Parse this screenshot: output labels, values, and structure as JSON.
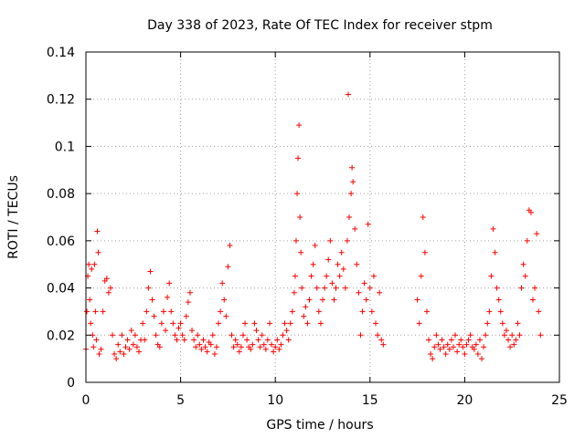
{
  "chart_data": {
    "type": "scatter",
    "title": "Day 338 of 2023, Rate Of TEC Index for receiver stpm",
    "xlabel": "GPS time / hours",
    "ylabel": "ROTI / TECUs",
    "xlim": [
      0,
      25
    ],
    "ylim": [
      0,
      0.14
    ],
    "x_ticks": [
      "0",
      "5",
      "10",
      "15",
      "20",
      "25"
    ],
    "y_ticks": [
      "0",
      "0.02",
      "0.04",
      "0.06",
      "0.08",
      "0.1",
      "0.12",
      "0.14"
    ],
    "x_tick_values": [
      0,
      5,
      10,
      15,
      20,
      25
    ],
    "y_tick_values": [
      0,
      0.02,
      0.04,
      0.06,
      0.08,
      0.1,
      0.12,
      0.14
    ],
    "grid": true,
    "marker": "+",
    "color": "#ff0000",
    "series": [
      {
        "points": [
          [
            0.0,
            0.014
          ],
          [
            0.05,
            0.03
          ],
          [
            0.1,
            0.045
          ],
          [
            0.15,
            0.05
          ],
          [
            0.2,
            0.035
          ],
          [
            0.25,
            0.025
          ],
          [
            0.3,
            0.048
          ],
          [
            0.35,
            0.02
          ],
          [
            0.4,
            0.015
          ],
          [
            0.45,
            0.05
          ],
          [
            0.5,
            0.03
          ],
          [
            0.55,
            0.018
          ],
          [
            0.6,
            0.064
          ],
          [
            0.65,
            0.055
          ],
          [
            0.7,
            0.012
          ],
          [
            0.8,
            0.014
          ],
          [
            0.9,
            0.03
          ],
          [
            1.0,
            0.043
          ],
          [
            1.1,
            0.044
          ],
          [
            1.2,
            0.038
          ],
          [
            1.3,
            0.04
          ],
          [
            1.4,
            0.02
          ],
          [
            1.5,
            0.012
          ],
          [
            1.6,
            0.01
          ],
          [
            1.7,
            0.016
          ],
          [
            1.8,
            0.013
          ],
          [
            1.9,
            0.02
          ],
          [
            2.0,
            0.012
          ],
          [
            2.1,
            0.015
          ],
          [
            2.2,
            0.018
          ],
          [
            2.3,
            0.014
          ],
          [
            2.4,
            0.022
          ],
          [
            2.5,
            0.016
          ],
          [
            2.6,
            0.02
          ],
          [
            2.7,
            0.015
          ],
          [
            2.8,
            0.013
          ],
          [
            2.9,
            0.018
          ],
          [
            3.0,
            0.025
          ],
          [
            3.1,
            0.018
          ],
          [
            3.2,
            0.03
          ],
          [
            3.3,
            0.04
          ],
          [
            3.4,
            0.047
          ],
          [
            3.5,
            0.035
          ],
          [
            3.6,
            0.028
          ],
          [
            3.7,
            0.02
          ],
          [
            3.8,
            0.016
          ],
          [
            3.9,
            0.015
          ],
          [
            4.0,
            0.025
          ],
          [
            4.1,
            0.03
          ],
          [
            4.2,
            0.022
          ],
          [
            4.3,
            0.036
          ],
          [
            4.4,
            0.042
          ],
          [
            4.5,
            0.03
          ],
          [
            4.6,
            0.025
          ],
          [
            4.7,
            0.02
          ],
          [
            4.8,
            0.018
          ],
          [
            4.9,
            0.023
          ],
          [
            5.0,
            0.025
          ],
          [
            5.1,
            0.02
          ],
          [
            5.2,
            0.018
          ],
          [
            5.3,
            0.028
          ],
          [
            5.4,
            0.034
          ],
          [
            5.5,
            0.038
          ],
          [
            5.6,
            0.022
          ],
          [
            5.7,
            0.018
          ],
          [
            5.8,
            0.015
          ],
          [
            5.9,
            0.02
          ],
          [
            6.0,
            0.016
          ],
          [
            6.1,
            0.014
          ],
          [
            6.2,
            0.018
          ],
          [
            6.3,
            0.015
          ],
          [
            6.4,
            0.013
          ],
          [
            6.5,
            0.017
          ],
          [
            6.6,
            0.016
          ],
          [
            6.7,
            0.02
          ],
          [
            6.8,
            0.012
          ],
          [
            6.9,
            0.015
          ],
          [
            7.0,
            0.025
          ],
          [
            7.1,
            0.03
          ],
          [
            7.2,
            0.042
          ],
          [
            7.3,
            0.035
          ],
          [
            7.4,
            0.028
          ],
          [
            7.5,
            0.049
          ],
          [
            7.6,
            0.058
          ],
          [
            7.7,
            0.02
          ],
          [
            7.8,
            0.015
          ],
          [
            7.9,
            0.018
          ],
          [
            8.0,
            0.016
          ],
          [
            8.1,
            0.013
          ],
          [
            8.2,
            0.015
          ],
          [
            8.3,
            0.02
          ],
          [
            8.4,
            0.025
          ],
          [
            8.5,
            0.018
          ],
          [
            8.6,
            0.015
          ],
          [
            8.7,
            0.014
          ],
          [
            8.8,
            0.016
          ],
          [
            8.9,
            0.025
          ],
          [
            9.0,
            0.022
          ],
          [
            9.1,
            0.018
          ],
          [
            9.2,
            0.015
          ],
          [
            9.3,
            0.02
          ],
          [
            9.4,
            0.016
          ],
          [
            9.5,
            0.014
          ],
          [
            9.6,
            0.018
          ],
          [
            9.7,
            0.025
          ],
          [
            9.8,
            0.016
          ],
          [
            9.9,
            0.013
          ],
          [
            10.0,
            0.015
          ],
          [
            10.1,
            0.018
          ],
          [
            10.2,
            0.014
          ],
          [
            10.3,
            0.016
          ],
          [
            10.4,
            0.02
          ],
          [
            10.5,
            0.025
          ],
          [
            10.6,
            0.022
          ],
          [
            10.7,
            0.018
          ],
          [
            10.8,
            0.025
          ],
          [
            10.9,
            0.03
          ],
          [
            11.0,
            0.038
          ],
          [
            11.05,
            0.045
          ],
          [
            11.1,
            0.06
          ],
          [
            11.15,
            0.08
          ],
          [
            11.2,
            0.095
          ],
          [
            11.25,
            0.109
          ],
          [
            11.3,
            0.07
          ],
          [
            11.35,
            0.055
          ],
          [
            11.4,
            0.04
          ],
          [
            11.5,
            0.028
          ],
          [
            11.6,
            0.032
          ],
          [
            11.7,
            0.025
          ],
          [
            11.8,
            0.035
          ],
          [
            11.9,
            0.045
          ],
          [
            12.0,
            0.05
          ],
          [
            12.1,
            0.058
          ],
          [
            12.2,
            0.04
          ],
          [
            12.3,
            0.03
          ],
          [
            12.4,
            0.025
          ],
          [
            12.5,
            0.035
          ],
          [
            12.6,
            0.04
          ],
          [
            12.7,
            0.045
          ],
          [
            12.8,
            0.052
          ],
          [
            12.9,
            0.06
          ],
          [
            13.0,
            0.042
          ],
          [
            13.1,
            0.035
          ],
          [
            13.2,
            0.04
          ],
          [
            13.3,
            0.05
          ],
          [
            13.4,
            0.045
          ],
          [
            13.5,
            0.055
          ],
          [
            13.6,
            0.048
          ],
          [
            13.7,
            0.04
          ],
          [
            13.8,
            0.06
          ],
          [
            13.85,
            0.122
          ],
          [
            13.9,
            0.07
          ],
          [
            14.0,
            0.08
          ],
          [
            14.05,
            0.091
          ],
          [
            14.1,
            0.085
          ],
          [
            14.2,
            0.065
          ],
          [
            14.3,
            0.05
          ],
          [
            14.4,
            0.038
          ],
          [
            14.5,
            0.02
          ],
          [
            14.6,
            0.03
          ],
          [
            14.7,
            0.042
          ],
          [
            14.8,
            0.035
          ],
          [
            14.9,
            0.067
          ],
          [
            15.0,
            0.04
          ],
          [
            15.1,
            0.03
          ],
          [
            15.2,
            0.045
          ],
          [
            15.3,
            0.025
          ],
          [
            15.4,
            0.02
          ],
          [
            15.5,
            0.038
          ],
          [
            15.6,
            0.018
          ],
          [
            15.7,
            0.016
          ],
          [
            17.5,
            0.035
          ],
          [
            17.6,
            0.025
          ],
          [
            17.7,
            0.045
          ],
          [
            17.8,
            0.07
          ],
          [
            17.9,
            0.055
          ],
          [
            18.0,
            0.03
          ],
          [
            18.1,
            0.018
          ],
          [
            18.2,
            0.012
          ],
          [
            18.3,
            0.01
          ],
          [
            18.4,
            0.015
          ],
          [
            18.5,
            0.02
          ],
          [
            18.6,
            0.016
          ],
          [
            18.7,
            0.014
          ],
          [
            18.8,
            0.018
          ],
          [
            18.9,
            0.015
          ],
          [
            19.0,
            0.012
          ],
          [
            19.1,
            0.016
          ],
          [
            19.2,
            0.014
          ],
          [
            19.3,
            0.018
          ],
          [
            19.4,
            0.015
          ],
          [
            19.5,
            0.02
          ],
          [
            19.6,
            0.013
          ],
          [
            19.7,
            0.016
          ],
          [
            19.8,
            0.018
          ],
          [
            19.9,
            0.015
          ],
          [
            20.0,
            0.012
          ],
          [
            20.1,
            0.016
          ],
          [
            20.2,
            0.018
          ],
          [
            20.3,
            0.02
          ],
          [
            20.4,
            0.015
          ],
          [
            20.5,
            0.014
          ],
          [
            20.6,
            0.016
          ],
          [
            20.7,
            0.012
          ],
          [
            20.8,
            0.018
          ],
          [
            20.9,
            0.01
          ],
          [
            21.0,
            0.015
          ],
          [
            21.1,
            0.02
          ],
          [
            21.2,
            0.025
          ],
          [
            21.3,
            0.03
          ],
          [
            21.4,
            0.045
          ],
          [
            21.5,
            0.065
          ],
          [
            21.6,
            0.055
          ],
          [
            21.7,
            0.04
          ],
          [
            21.8,
            0.035
          ],
          [
            21.9,
            0.03
          ],
          [
            22.0,
            0.025
          ],
          [
            22.1,
            0.02
          ],
          [
            22.2,
            0.022
          ],
          [
            22.3,
            0.018
          ],
          [
            22.4,
            0.015
          ],
          [
            22.5,
            0.02
          ],
          [
            22.6,
            0.016
          ],
          [
            22.7,
            0.018
          ],
          [
            22.8,
            0.025
          ],
          [
            22.9,
            0.02
          ],
          [
            23.0,
            0.04
          ],
          [
            23.1,
            0.05
          ],
          [
            23.2,
            0.045
          ],
          [
            23.3,
            0.06
          ],
          [
            23.4,
            0.073
          ],
          [
            23.5,
            0.072
          ],
          [
            23.6,
            0.035
          ],
          [
            23.7,
            0.04
          ],
          [
            23.8,
            0.063
          ],
          [
            23.9,
            0.03
          ],
          [
            24.0,
            0.02
          ]
        ]
      }
    ]
  }
}
